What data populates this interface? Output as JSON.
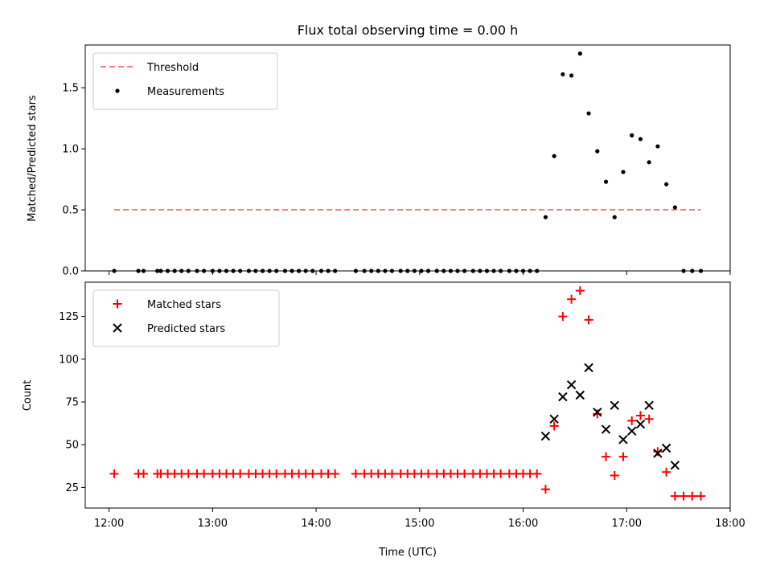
{
  "chart_data": {
    "type": "scatter",
    "title": "Flux total observing time = 0.00 h",
    "xlabel": "Time (UTC)",
    "x_ticks": [
      "12:00",
      "13:00",
      "14:00",
      "15:00",
      "16:00",
      "17:00",
      "18:00"
    ],
    "xlim_hours": [
      11.77,
      18.0
    ],
    "grid": false,
    "panels": [
      {
        "ylabel": "Matched/Predicted stars",
        "ylim": [
          0,
          1.85
        ],
        "y_ticks": [
          "0.0",
          "0.5",
          "1.0",
          "1.5"
        ],
        "legend_placement": "upper-left",
        "threshold": {
          "name": "Threshold",
          "color": "#ff7f7f",
          "value": 0.5,
          "x_range": [
            "12:03",
            "17:43"
          ]
        },
        "series": [
          {
            "name": "Measurements",
            "marker": "dot",
            "color": "#000000",
            "points": [
              [
                "12:03",
                0.0
              ],
              [
                "12:17",
                0.0
              ],
              [
                "12:20",
                0.0
              ],
              [
                "12:28",
                0.0
              ],
              [
                "12:30",
                0.0
              ],
              [
                "12:34",
                0.0
              ],
              [
                "12:38",
                0.0
              ],
              [
                "12:42",
                0.0
              ],
              [
                "12:46",
                0.0
              ],
              [
                "12:51",
                0.0
              ],
              [
                "12:55",
                0.0
              ],
              [
                "13:00",
                0.0
              ],
              [
                "13:04",
                0.0
              ],
              [
                "13:08",
                0.0
              ],
              [
                "13:12",
                0.0
              ],
              [
                "13:16",
                0.0
              ],
              [
                "13:21",
                0.0
              ],
              [
                "13:25",
                0.0
              ],
              [
                "13:29",
                0.0
              ],
              [
                "13:33",
                0.0
              ],
              [
                "13:37",
                0.0
              ],
              [
                "13:42",
                0.0
              ],
              [
                "13:46",
                0.0
              ],
              [
                "13:50",
                0.0
              ],
              [
                "13:54",
                0.0
              ],
              [
                "13:58",
                0.0
              ],
              [
                "14:03",
                0.0
              ],
              [
                "14:07",
                0.0
              ],
              [
                "14:11",
                0.0
              ],
              [
                "14:23",
                0.0
              ],
              [
                "14:28",
                0.0
              ],
              [
                "14:32",
                0.0
              ],
              [
                "14:36",
                0.0
              ],
              [
                "14:40",
                0.0
              ],
              [
                "14:44",
                0.0
              ],
              [
                "14:49",
                0.0
              ],
              [
                "14:53",
                0.0
              ],
              [
                "14:57",
                0.0
              ],
              [
                "15:01",
                0.0
              ],
              [
                "15:05",
                0.0
              ],
              [
                "15:10",
                0.0
              ],
              [
                "15:14",
                0.0
              ],
              [
                "15:18",
                0.0
              ],
              [
                "15:22",
                0.0
              ],
              [
                "15:26",
                0.0
              ],
              [
                "15:31",
                0.0
              ],
              [
                "15:35",
                0.0
              ],
              [
                "15:39",
                0.0
              ],
              [
                "15:43",
                0.0
              ],
              [
                "15:47",
                0.0
              ],
              [
                "15:52",
                0.0
              ],
              [
                "15:56",
                0.0
              ],
              [
                "16:00",
                0.0
              ],
              [
                "16:04",
                0.0
              ],
              [
                "16:08",
                0.0
              ],
              [
                "16:13",
                0.44
              ],
              [
                "16:18",
                0.94
              ],
              [
                "16:23",
                1.61
              ],
              [
                "16:28",
                1.6
              ],
              [
                "16:33",
                1.78
              ],
              [
                "16:38",
                1.29
              ],
              [
                "16:43",
                0.98
              ],
              [
                "16:48",
                0.73
              ],
              [
                "16:53",
                0.44
              ],
              [
                "16:58",
                0.81
              ],
              [
                "17:03",
                1.11
              ],
              [
                "17:08",
                1.08
              ],
              [
                "17:13",
                0.89
              ],
              [
                "17:18",
                1.02
              ],
              [
                "17:23",
                0.71
              ],
              [
                "17:28",
                0.52
              ],
              [
                "17:33",
                0.0
              ],
              [
                "17:38",
                0.0
              ],
              [
                "17:43",
                0.0
              ]
            ]
          }
        ]
      },
      {
        "ylabel": "Count",
        "ylim": [
          13,
          145
        ],
        "y_ticks": [
          "25",
          "50",
          "75",
          "100",
          "125"
        ],
        "legend_placement": "upper-left",
        "series": [
          {
            "name": "Matched stars",
            "marker": "plus",
            "color": "#ff0000",
            "points": [
              [
                "12:03",
                33
              ],
              [
                "12:17",
                33
              ],
              [
                "12:20",
                33
              ],
              [
                "12:28",
                33
              ],
              [
                "12:30",
                33
              ],
              [
                "12:34",
                33
              ],
              [
                "12:38",
                33
              ],
              [
                "12:42",
                33
              ],
              [
                "12:46",
                33
              ],
              [
                "12:51",
                33
              ],
              [
                "12:55",
                33
              ],
              [
                "13:00",
                33
              ],
              [
                "13:04",
                33
              ],
              [
                "13:08",
                33
              ],
              [
                "13:12",
                33
              ],
              [
                "13:16",
                33
              ],
              [
                "13:21",
                33
              ],
              [
                "13:25",
                33
              ],
              [
                "13:29",
                33
              ],
              [
                "13:33",
                33
              ],
              [
                "13:37",
                33
              ],
              [
                "13:42",
                33
              ],
              [
                "13:46",
                33
              ],
              [
                "13:50",
                33
              ],
              [
                "13:54",
                33
              ],
              [
                "13:58",
                33
              ],
              [
                "14:03",
                33
              ],
              [
                "14:07",
                33
              ],
              [
                "14:11",
                33
              ],
              [
                "14:23",
                33
              ],
              [
                "14:28",
                33
              ],
              [
                "14:32",
                33
              ],
              [
                "14:36",
                33
              ],
              [
                "14:40",
                33
              ],
              [
                "14:44",
                33
              ],
              [
                "14:49",
                33
              ],
              [
                "14:53",
                33
              ],
              [
                "14:57",
                33
              ],
              [
                "15:01",
                33
              ],
              [
                "15:05",
                33
              ],
              [
                "15:10",
                33
              ],
              [
                "15:14",
                33
              ],
              [
                "15:18",
                33
              ],
              [
                "15:22",
                33
              ],
              [
                "15:26",
                33
              ],
              [
                "15:31",
                33
              ],
              [
                "15:35",
                33
              ],
              [
                "15:39",
                33
              ],
              [
                "15:43",
                33
              ],
              [
                "15:47",
                33
              ],
              [
                "15:52",
                33
              ],
              [
                "15:56",
                33
              ],
              [
                "16:00",
                33
              ],
              [
                "16:04",
                33
              ],
              [
                "16:08",
                33
              ],
              [
                "16:13",
                24
              ],
              [
                "16:18",
                61
              ],
              [
                "16:23",
                125
              ],
              [
                "16:28",
                135
              ],
              [
                "16:33",
                140
              ],
              [
                "16:38",
                123
              ],
              [
                "16:43",
                68
              ],
              [
                "16:48",
                43
              ],
              [
                "16:53",
                32
              ],
              [
                "16:58",
                43
              ],
              [
                "17:03",
                64
              ],
              [
                "17:08",
                67
              ],
              [
                "17:13",
                65
              ],
              [
                "17:18",
                46
              ],
              [
                "17:23",
                34
              ],
              [
                "17:28",
                20
              ],
              [
                "17:33",
                20
              ],
              [
                "17:38",
                20
              ],
              [
                "17:43",
                20
              ]
            ]
          },
          {
            "name": "Predicted stars",
            "marker": "x",
            "color": "#000000",
            "points": [
              [
                "16:13",
                55
              ],
              [
                "16:18",
                65
              ],
              [
                "16:23",
                78
              ],
              [
                "16:28",
                85
              ],
              [
                "16:33",
                79
              ],
              [
                "16:38",
                95
              ],
              [
                "16:43",
                69
              ],
              [
                "16:48",
                59
              ],
              [
                "16:53",
                73
              ],
              [
                "16:58",
                53
              ],
              [
                "17:03",
                58
              ],
              [
                "17:08",
                62
              ],
              [
                "17:13",
                73
              ],
              [
                "17:18",
                45
              ],
              [
                "17:23",
                48
              ],
              [
                "17:28",
                38
              ]
            ]
          }
        ]
      }
    ]
  }
}
